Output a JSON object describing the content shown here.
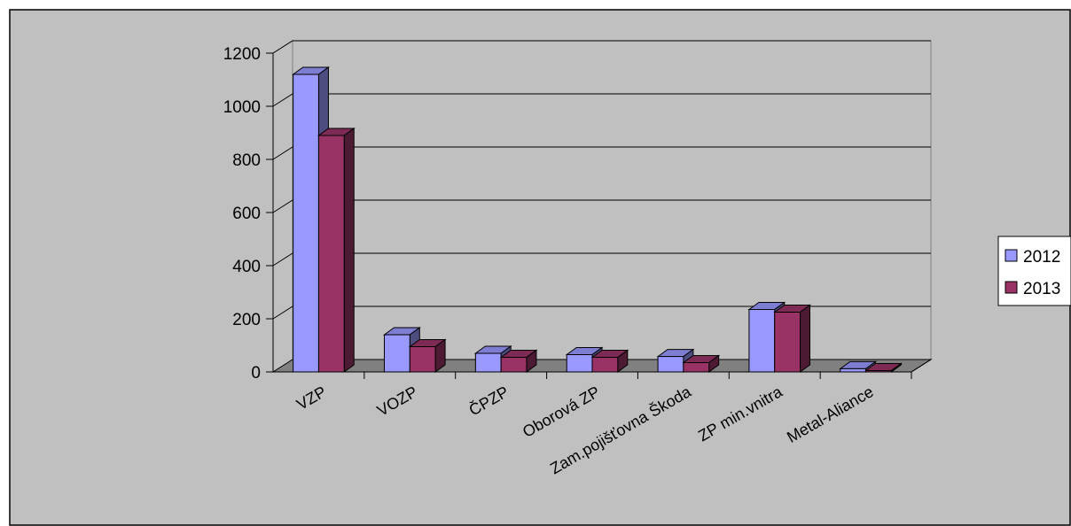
{
  "chart_data": {
    "type": "bar",
    "title": "",
    "xlabel": "",
    "ylabel": "",
    "categories": [
      "VZP",
      "VOZP",
      "ČPZP",
      "Oborová ZP",
      "Zam.pojišťovna Škoda",
      "ZP min.vnitra",
      "Metal-Aliance"
    ],
    "series": [
      {
        "name": "2012",
        "values": [
          1120,
          140,
          70,
          65,
          58,
          235,
          12
        ]
      },
      {
        "name": "2013",
        "values": [
          890,
          95,
          55,
          55,
          35,
          225,
          5
        ]
      }
    ],
    "ylim": [
      0,
      1200
    ],
    "yticks": [
      0,
      200,
      400,
      600,
      800,
      1000,
      1200
    ],
    "grid": true,
    "legend_position": "right",
    "colors": {
      "series": [
        "#9999ff",
        "#993366"
      ],
      "plot_background": "#c0c0c0",
      "floor": "#808080",
      "gridline": "#000000"
    }
  }
}
